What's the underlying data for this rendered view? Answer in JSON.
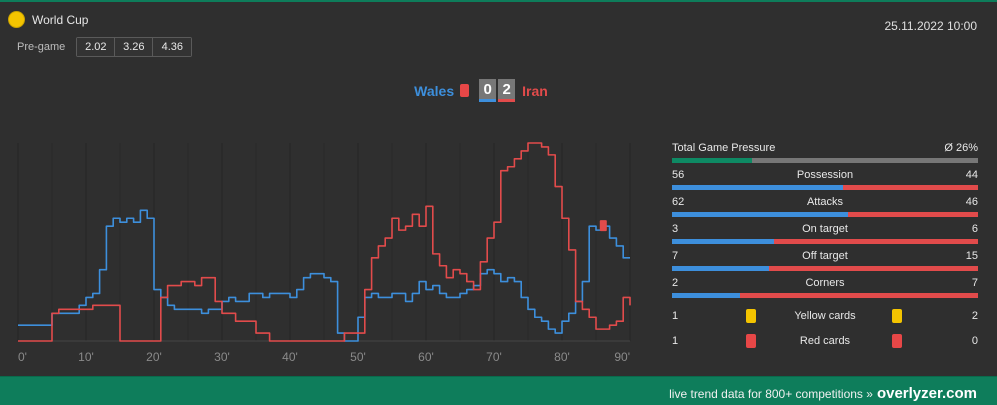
{
  "competition": "World Cup",
  "date": "25.11.2022 10:00",
  "pregame": {
    "label": "Pre-game",
    "odds": [
      "2.02",
      "3.26",
      "4.36"
    ]
  },
  "match": {
    "home": "Wales",
    "away": "Iran",
    "home_score": "0",
    "away_score": "2"
  },
  "colors": {
    "home": "#3d8fdc",
    "away": "#e24b4b",
    "accent": "#0e7d5b"
  },
  "chart_data": {
    "type": "line",
    "xlim": [
      0,
      90
    ],
    "x_ticks": [
      "0'",
      "10'",
      "20'",
      "30'",
      "40'",
      "50'",
      "60'",
      "70'",
      "80'",
      "90'"
    ],
    "ylim": [
      0,
      100
    ],
    "grid": "vertical",
    "series": [
      {
        "name": "Wales",
        "color": "#3d8fdc",
        "x": [
          0,
          2,
          4,
          5,
          6,
          7,
          8,
          9,
          10,
          11,
          12,
          13,
          14,
          15,
          16,
          17,
          18,
          19,
          20,
          21,
          22,
          23,
          24,
          25,
          26,
          27,
          28,
          29,
          30,
          31,
          32,
          33,
          34,
          35,
          36,
          37,
          38,
          39,
          40,
          41,
          42,
          43,
          44,
          45,
          46,
          47,
          48,
          49,
          50,
          51,
          52,
          53,
          54,
          55,
          56,
          57,
          58,
          59,
          60,
          61,
          62,
          63,
          64,
          65,
          66,
          67,
          68,
          69,
          70,
          71,
          72,
          73,
          74,
          75,
          76,
          77,
          78,
          79,
          80,
          81,
          82,
          83,
          84,
          85,
          86,
          87,
          88,
          89,
          90
        ],
        "y": [
          8,
          8,
          8,
          14,
          14,
          14,
          14,
          18,
          22,
          24,
          36,
          58,
          62,
          60,
          62,
          60,
          66,
          62,
          26,
          22,
          18,
          16,
          16,
          16,
          16,
          14,
          16,
          16,
          20,
          22,
          20,
          20,
          24,
          24,
          22,
          24,
          24,
          24,
          22,
          26,
          32,
          34,
          34,
          32,
          30,
          4,
          0,
          0,
          12,
          22,
          24,
          22,
          22,
          24,
          24,
          20,
          24,
          30,
          26,
          28,
          24,
          22,
          22,
          24,
          26,
          28,
          34,
          36,
          34,
          30,
          32,
          30,
          22,
          16,
          12,
          10,
          6,
          4,
          10,
          14,
          20,
          30,
          58,
          56,
          58,
          52,
          48,
          42,
          42
        ]
      },
      {
        "name": "Iran",
        "color": "#e24b4b",
        "x": [
          0,
          3,
          4,
          5,
          6,
          7,
          8,
          9,
          10,
          11,
          12,
          13,
          14,
          15,
          16,
          17,
          18,
          19,
          20,
          21,
          22,
          23,
          24,
          25,
          26,
          27,
          28,
          29,
          30,
          31,
          32,
          33,
          34,
          35,
          36,
          37,
          38,
          39,
          40,
          41,
          42,
          43,
          44,
          45,
          46,
          47,
          48,
          49,
          50,
          51,
          52,
          53,
          54,
          55,
          56,
          57,
          58,
          59,
          60,
          61,
          62,
          63,
          64,
          65,
          66,
          67,
          68,
          69,
          70,
          71,
          72,
          73,
          74,
          75,
          76,
          77,
          78,
          79,
          80,
          81,
          82,
          83,
          84,
          85,
          86,
          87,
          88,
          89,
          90
        ],
        "y": [
          0,
          0,
          0,
          14,
          16,
          16,
          16,
          16,
          16,
          18,
          18,
          18,
          18,
          0,
          0,
          0,
          0,
          0,
          0,
          22,
          28,
          28,
          30,
          30,
          28,
          32,
          32,
          20,
          14,
          14,
          10,
          10,
          10,
          4,
          4,
          0,
          0,
          0,
          0,
          0,
          0,
          0,
          0,
          0,
          0,
          0,
          4,
          4,
          4,
          26,
          42,
          48,
          52,
          62,
          56,
          58,
          64,
          58,
          68,
          44,
          38,
          32,
          36,
          34,
          30,
          26,
          40,
          52,
          60,
          86,
          88,
          92,
          96,
          100,
          100,
          98,
          94,
          78,
          62,
          46,
          20,
          16,
          12,
          6,
          6,
          8,
          10,
          22,
          18
        ]
      },
      {
        "name": "Red card marker",
        "color": "#e24b4b",
        "x": [
          86
        ],
        "y": [
          58
        ]
      }
    ]
  },
  "stats": {
    "pressure": {
      "label": "Total Game Pressure",
      "value": "Ø 26%",
      "fraction": 0.26
    },
    "rows": [
      {
        "label": "Possession",
        "home": "56",
        "away": "44"
      },
      {
        "label": "Attacks",
        "home": "62",
        "away": "46"
      },
      {
        "label": "On target",
        "home": "3",
        "away": "6"
      },
      {
        "label": "Off target",
        "home": "7",
        "away": "15"
      },
      {
        "label": "Corners",
        "home": "2",
        "away": "7"
      }
    ],
    "cards": [
      {
        "label": "Yellow cards",
        "home": "1",
        "away": "2",
        "color": "#f4c400"
      },
      {
        "label": "Red cards",
        "home": "1",
        "away": "0",
        "color": "#e74747"
      }
    ]
  },
  "footer": {
    "text": "live trend data for 800+ competitions »",
    "brand": "overlyzer.com"
  }
}
